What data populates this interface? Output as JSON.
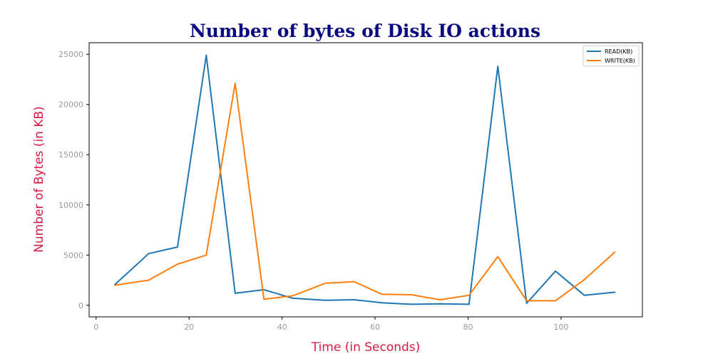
{
  "chart_data": {
    "type": "line",
    "title": "Number of bytes of Disk IO actions",
    "xlabel": "Time (in Seconds)",
    "ylabel": "Number of Bytes (in KB)",
    "xlim": [
      -1.5,
      117.5
    ],
    "ylim": [
      -1150,
      26150
    ],
    "xticks": [
      0,
      20,
      40,
      60,
      80,
      100
    ],
    "yticks": [
      0,
      5000,
      10000,
      15000,
      20000,
      25000
    ],
    "grid": false,
    "legend_position": "top-right",
    "x": [
      4,
      11.3,
      17.5,
      23.7,
      29.9,
      36.1,
      42.3,
      49.3,
      55.5,
      61.5,
      67.8,
      74,
      80.2,
      86.4,
      92.6,
      98.8,
      105,
      111.6
    ],
    "series": [
      {
        "name": "READ(KB)",
        "color": "#1f77b4",
        "values": [
          2050,
          5150,
          5800,
          24900,
          1200,
          1550,
          700,
          500,
          550,
          250,
          100,
          150,
          100,
          23800,
          200,
          3400,
          1000,
          1300
        ]
      },
      {
        "name": "WRITE(KB)",
        "color": "#ff7f0e",
        "values": [
          2000,
          2500,
          4100,
          5000,
          22100,
          600,
          950,
          2200,
          2350,
          1100,
          1050,
          550,
          1000,
          4850,
          450,
          450,
          2550,
          5300
        ]
      }
    ]
  }
}
